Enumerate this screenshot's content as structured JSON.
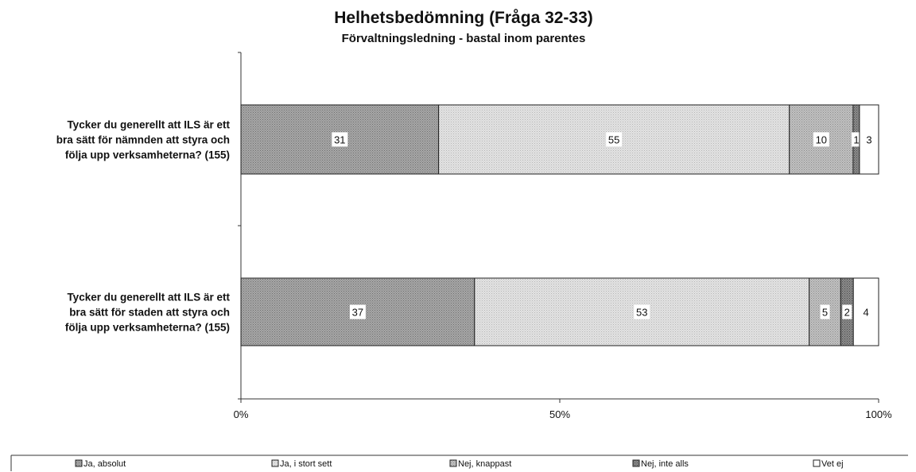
{
  "chart_data": {
    "type": "bar",
    "orientation": "horizontal",
    "stacked": "percent",
    "title": "Helhetsbedömning (Fråga 32-33)",
    "subtitle": "Förvaltningsledning - bastal inom parentes",
    "categories": [
      [
        "Tycker du generellt att ILS är ett",
        "bra sätt för nämnden att styra och",
        "följa upp verksamheterna? (155)"
      ],
      [
        "Tycker du generellt att ILS är ett",
        "bra sätt för staden att styra och",
        "följa upp verksamheterna? (155)"
      ]
    ],
    "series": [
      {
        "name": "Ja, absolut",
        "values": [
          31,
          37
        ],
        "color": "#9a9a9a",
        "pattern": "dots-dark"
      },
      {
        "name": "Ja, i stort sett",
        "values": [
          55,
          53
        ],
        "color": "#d9d9d9",
        "pattern": "dots-light"
      },
      {
        "name": "Nej, knappast",
        "values": [
          10,
          5
        ],
        "color": "#b3b3b3",
        "pattern": "dots-medium"
      },
      {
        "name": "Nej, inte alls",
        "values": [
          1,
          2
        ],
        "color": "#7f7f7f",
        "pattern": "dots-darkest"
      },
      {
        "name": "Vet ej",
        "values": [
          3,
          4
        ],
        "color": "#ffffff",
        "pattern": "none"
      }
    ],
    "xlim": [
      0,
      100
    ],
    "xticks": [
      "0%",
      "50%",
      "100%"
    ],
    "legend_position": "bottom",
    "grid": false
  }
}
